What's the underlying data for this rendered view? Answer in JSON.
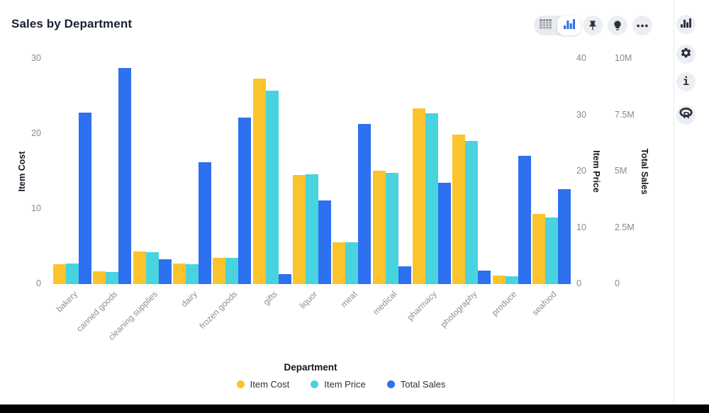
{
  "header": {
    "title": "Sales by Department"
  },
  "toolbar": {
    "view_toggle": {
      "options": [
        {
          "icon": "table-icon",
          "selected": false
        },
        {
          "icon": "bar-chart-icon",
          "selected": true
        }
      ]
    },
    "buttons": [
      {
        "icon": "pin-icon"
      },
      {
        "icon": "lightbulb-icon"
      },
      {
        "icon": "ellipsis-icon"
      }
    ]
  },
  "side_rail": {
    "buttons": [
      {
        "icon": "bar-chart-icon"
      },
      {
        "icon": "gear-icon"
      },
      {
        "icon": "info-icon"
      },
      {
        "icon": "r-logo-icon"
      }
    ]
  },
  "chart_data": {
    "type": "bar",
    "title": "Sales by Department",
    "xlabel": "Department",
    "grid": false,
    "legend_position": "bottom",
    "categories": [
      "bakery",
      "canned goods",
      "cleaning supplies",
      "dairy",
      "frozen goods",
      "gifts",
      "liquor",
      "meat",
      "medical",
      "pharmacy",
      "photography",
      "produce",
      "seafood"
    ],
    "series": [
      {
        "name": "Item Cost",
        "axis": "left",
        "color": "#FBC32C",
        "values": [
          2.6,
          1.7,
          4.3,
          2.7,
          3.5,
          27.4,
          14.5,
          5.6,
          15.1,
          23.4,
          19.9,
          1.1,
          9.3
        ]
      },
      {
        "name": "Item Price",
        "axis": "right1",
        "color": "#49D3DF",
        "values": [
          3.7,
          2.2,
          5.7,
          3.5,
          4.7,
          34.4,
          19.5,
          7.4,
          19.8,
          30.3,
          25.4,
          1.4,
          11.8
        ]
      },
      {
        "name": "Total Sales",
        "axis": "right2",
        "color": "#2D70F0",
        "unit": "M",
        "values": [
          7.6,
          9.6,
          1.1,
          5.4,
          7.4,
          0.45,
          3.7,
          7.1,
          0.8,
          4.5,
          0.6,
          5.7,
          4.2
        ]
      }
    ],
    "axes": {
      "left": {
        "title": "Item Cost",
        "max": 30,
        "ticks": [
          {
            "v": 0,
            "label": "0"
          },
          {
            "v": 10,
            "label": "10"
          },
          {
            "v": 20,
            "label": "20"
          },
          {
            "v": 30,
            "label": "30"
          }
        ]
      },
      "right1": {
        "title": "Item Price",
        "max": 40,
        "ticks": [
          {
            "v": 0,
            "label": "0"
          },
          {
            "v": 10,
            "label": "10"
          },
          {
            "v": 20,
            "label": "20"
          },
          {
            "v": 30,
            "label": "30"
          },
          {
            "v": 40,
            "label": "40"
          }
        ]
      },
      "right2": {
        "title": "Total Sales",
        "max": 10,
        "ticks": [
          {
            "v": 0,
            "label": "0"
          },
          {
            "v": 2.5,
            "label": "2.5M"
          },
          {
            "v": 5,
            "label": "5M"
          },
          {
            "v": 7.5,
            "label": "7.5M"
          },
          {
            "v": 10,
            "label": "10M"
          }
        ]
      }
    },
    "legend": {
      "entries": [
        "Item Cost",
        "Item Price",
        "Total Sales"
      ]
    }
  }
}
